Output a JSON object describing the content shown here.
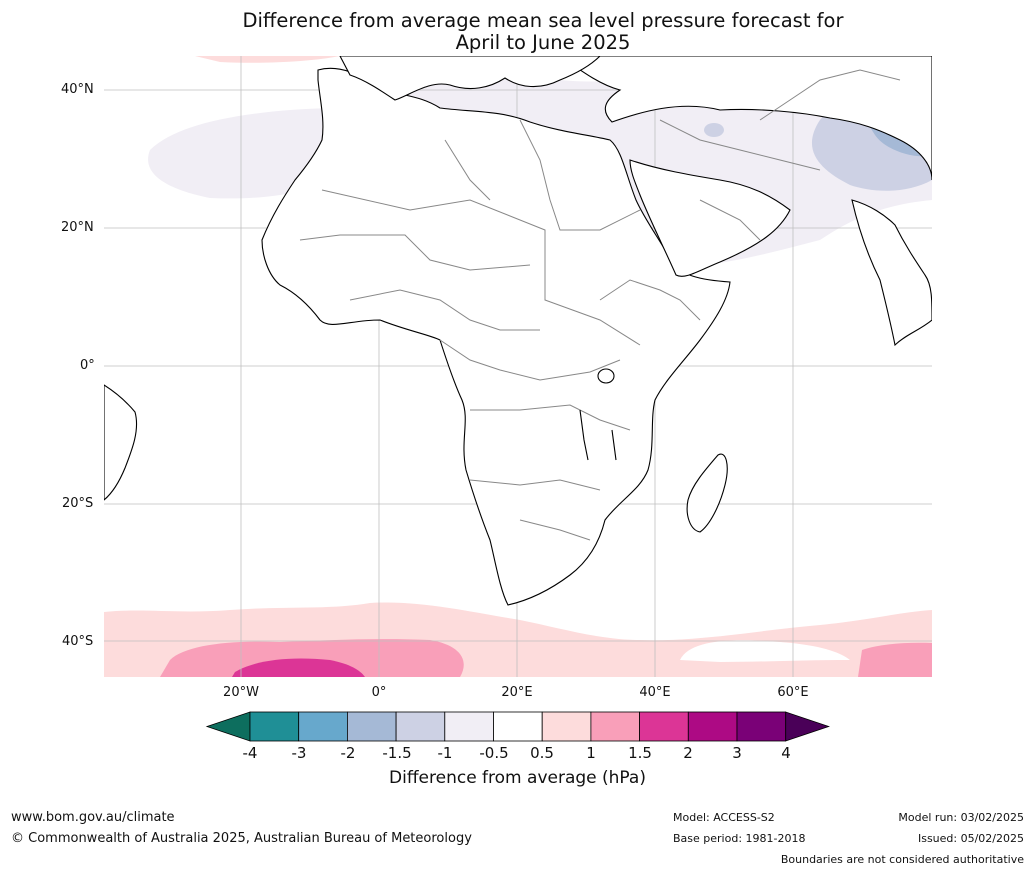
{
  "map": {
    "title_line1": "Difference from average mean sea level pressure forecast for",
    "title_line2": "April to June 2025",
    "lat_labels": [
      "40°N",
      "20°N",
      "0°",
      "20°S",
      "40°S"
    ],
    "lon_labels": [
      "20°W",
      "0°",
      "20°E",
      "40°E",
      "60°E"
    ],
    "region": "Africa",
    "grid": true
  },
  "colorbar": {
    "ticks": [
      "-4",
      "-3",
      "-2",
      "-1.5",
      "-1",
      "-0.5",
      "0.5",
      "1",
      "1.5",
      "2",
      "3",
      "4"
    ],
    "colors": [
      "#0d6e5e",
      "#1f8f96",
      "#67a8cc",
      "#a5b9d6",
      "#cdd1e4",
      "#f1eef5",
      "#ffffff",
      "#fddcdc",
      "#f99fb9",
      "#dc3596",
      "#ad0a84",
      "#7a0177",
      "#4a0058"
    ],
    "label": "Difference from average (hPa)"
  },
  "footer": {
    "website": "www.bom.gov.au/climate",
    "copyright": "© Commonwealth of Australia 2025, Australian Bureau of Meteorology",
    "model": "Model: ACCESS-S2",
    "base_period": "Base period: 1981-2018",
    "model_run": "Model run: 03/02/2025",
    "issued": "Issued: 05/02/2025",
    "disclaimer": "Boundaries are not considered authoritative"
  }
}
